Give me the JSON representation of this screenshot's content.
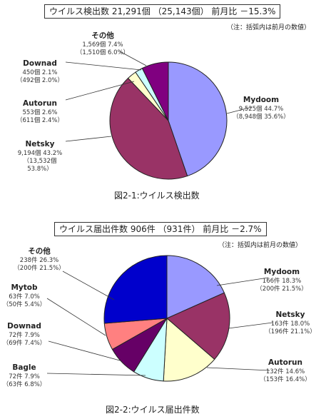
{
  "chart_data": [
    {
      "type": "pie",
      "title": "ウイルス検出数 21,291個 （25,143個） 前月比 －15.3%",
      "note": "（注：括弧内は前月の数値）",
      "caption": "図2-1:ウイルス検出数",
      "unit": "個",
      "colors": {
        "Mydoom": "#9999ff",
        "Netsky": "#993366",
        "Autorun": "#ffffcc",
        "Downad": "#ccffff",
        "その他": "#800080"
      },
      "slices": [
        {
          "name": "Mydoom",
          "value": 9525,
          "percent": 44.7,
          "lines": [
            "9,525個 44.7%",
            "（8,948個 35.6%）"
          ]
        },
        {
          "name": "Netsky",
          "value": 9194,
          "percent": 43.2,
          "lines": [
            "9,194個 43.2%",
            "（13,532個",
            "53.8%）"
          ]
        },
        {
          "name": "Autorun",
          "value": 553,
          "percent": 2.6,
          "lines": [
            "553個 2.6%",
            "（611個 2.4%）"
          ]
        },
        {
          "name": "Downad",
          "value": 450,
          "percent": 2.1,
          "lines": [
            "450個 2.1%",
            "（492個 2.0%）"
          ]
        },
        {
          "name": "その他",
          "value": 1569,
          "percent": 7.4,
          "lines": [
            "1,569個 7.4%",
            "（1,510個 6.0%）"
          ]
        }
      ]
    },
    {
      "type": "pie",
      "title": "ウイルス届出件数 906件 （931件） 前月比 －2.7%",
      "note": "（注：括弧内は前月の数値）",
      "caption": "図2-2:ウイルス届出件数",
      "unit": "件",
      "colors": {
        "Mydoom": "#9999ff",
        "Netsky": "#993366",
        "Autorun": "#ffffcc",
        "Bagle": "#ccffff",
        "Downad": "#660066",
        "Mytob": "#ff8080",
        "その他": "#0000cc"
      },
      "slices": [
        {
          "name": "Mydoom",
          "value": 166,
          "percent": 18.3,
          "lines": [
            "166件 18.3%",
            "（200件 21.5%）"
          ]
        },
        {
          "name": "Netsky",
          "value": 163,
          "percent": 18.0,
          "lines": [
            "163件 18.0%",
            "（196件 21.1%）"
          ]
        },
        {
          "name": "Autorun",
          "value": 132,
          "percent": 14.6,
          "lines": [
            "132件 14.6%",
            "（153件 16.4%）"
          ]
        },
        {
          "name": "Bagle",
          "value": 72,
          "percent": 7.9,
          "lines": [
            "72件 7.9%",
            "（63件 6.8%）"
          ]
        },
        {
          "name": "Downad",
          "value": 72,
          "percent": 7.9,
          "lines": [
            "72件 7.9%",
            "（69件 7.4%）"
          ]
        },
        {
          "name": "Mytob",
          "value": 63,
          "percent": 7.0,
          "lines": [
            "63件 7.0%",
            "（50件 5.4%）"
          ]
        },
        {
          "name": "その他",
          "value": 238,
          "percent": 26.3,
          "lines": [
            "238件 26.3%",
            "（200件 21.5%）"
          ]
        }
      ]
    }
  ]
}
